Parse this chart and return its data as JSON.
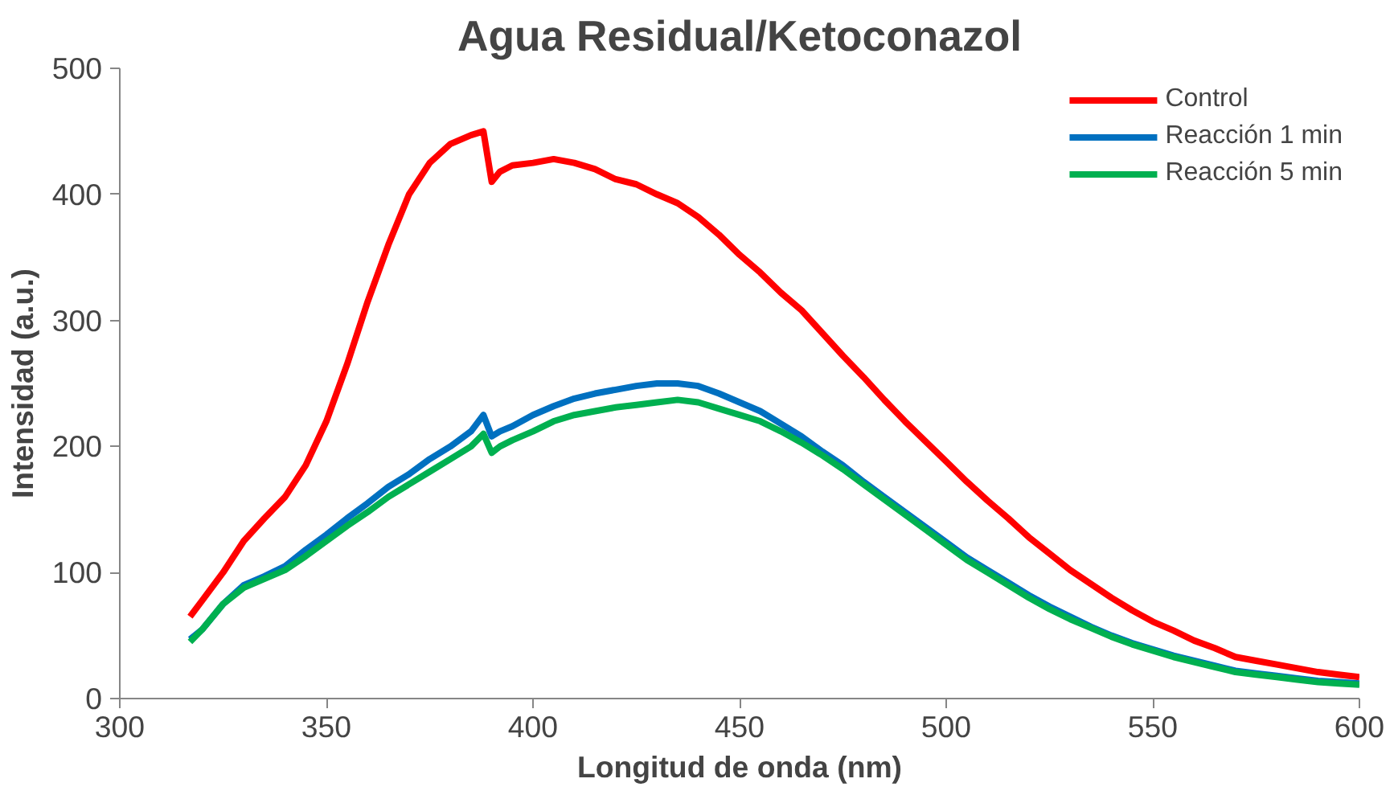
{
  "chart_data": {
    "type": "line",
    "title": "Agua Residual/Ketoconazol",
    "xlabel": "Longitud de onda (nm)",
    "ylabel": "Intensidad (a.u.)",
    "x": [
      317,
      320,
      325,
      330,
      335,
      340,
      345,
      350,
      355,
      360,
      365,
      370,
      375,
      380,
      385,
      388,
      390,
      392,
      395,
      400,
      405,
      410,
      415,
      420,
      425,
      430,
      435,
      440,
      445,
      450,
      455,
      460,
      465,
      470,
      475,
      480,
      485,
      490,
      495,
      500,
      505,
      510,
      515,
      520,
      525,
      530,
      535,
      540,
      545,
      550,
      555,
      560,
      565,
      570,
      575,
      580,
      585,
      590,
      595,
      600
    ],
    "series": [
      {
        "name": "Control",
        "color": "#ff0000",
        "values": [
          65,
          78,
          100,
          125,
          143,
          160,
          185,
          220,
          265,
          315,
          360,
          400,
          425,
          440,
          447,
          450,
          410,
          418,
          423,
          425,
          428,
          425,
          420,
          412,
          408,
          400,
          393,
          382,
          368,
          352,
          338,
          322,
          308,
          290,
          272,
          255,
          237,
          220,
          204,
          188,
          172,
          157,
          143,
          128,
          115,
          102,
          91,
          80,
          70,
          61,
          54,
          46,
          40,
          33,
          30,
          27,
          24,
          21,
          19,
          17
        ]
      },
      {
        "name": "Reacción 1 min",
        "color": "#0070c0",
        "values": [
          47,
          55,
          75,
          90,
          97,
          105,
          118,
          130,
          143,
          155,
          168,
          178,
          190,
          200,
          212,
          225,
          208,
          212,
          216,
          225,
          232,
          238,
          242,
          245,
          248,
          250,
          250,
          248,
          242,
          235,
          228,
          218,
          208,
          196,
          185,
          172,
          160,
          148,
          136,
          124,
          112,
          102,
          92,
          82,
          73,
          65,
          57,
          50,
          44,
          39,
          34,
          30,
          26,
          22,
          20,
          18,
          16,
          14,
          13,
          12
        ]
      },
      {
        "name": "Reacción 5 min",
        "color": "#00b050",
        "values": [
          45,
          55,
          75,
          88,
          95,
          102,
          113,
          125,
          137,
          148,
          160,
          170,
          180,
          190,
          200,
          210,
          195,
          200,
          205,
          212,
          220,
          225,
          228,
          231,
          233,
          235,
          237,
          235,
          230,
          225,
          220,
          212,
          203,
          193,
          182,
          170,
          158,
          146,
          134,
          122,
          110,
          100,
          90,
          80,
          71,
          63,
          56,
          49,
          43,
          38,
          33,
          29,
          25,
          21,
          19,
          17,
          15,
          13,
          12,
          11
        ]
      }
    ],
    "xlim": [
      300,
      600
    ],
    "xticks": [
      300,
      350,
      400,
      450,
      500,
      550,
      600
    ],
    "ylim": [
      0,
      500
    ],
    "yticks": [
      0,
      100,
      200,
      300,
      400,
      500
    ],
    "grid": false,
    "legend": "top right",
    "line_style": "solid",
    "marker": "none"
  }
}
